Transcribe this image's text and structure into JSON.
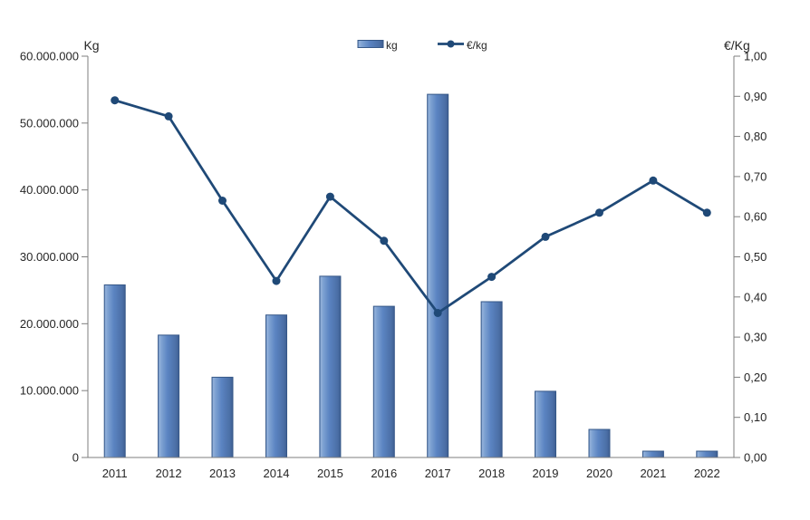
{
  "chart_data": {
    "type": "bar+line",
    "categories": [
      "2011",
      "2012",
      "2013",
      "2014",
      "2015",
      "2016",
      "2017",
      "2018",
      "2019",
      "2020",
      "2021",
      "2022"
    ],
    "series": [
      {
        "name": "kg",
        "type": "bar",
        "axis": "left",
        "values": [
          25800000,
          18300000,
          12000000,
          21300000,
          27100000,
          22600000,
          54300000,
          23300000,
          9900000,
          4200000,
          950000,
          950000
        ]
      },
      {
        "name": "€/kg",
        "type": "line",
        "axis": "right",
        "values": [
          0.89,
          0.85,
          0.64,
          0.44,
          0.65,
          0.54,
          0.36,
          0.45,
          0.55,
          0.61,
          0.69,
          0.61
        ]
      }
    ],
    "left_axis": {
      "title": "Kg",
      "min": 0,
      "max": 60000000,
      "tick_step": 10000000,
      "tick_labels": [
        "0",
        "10.000.000",
        "20.000.000",
        "30.000.000",
        "40.000.000",
        "50.000.000",
        "60.000.000"
      ]
    },
    "right_axis": {
      "title": "€/Kg",
      "min": 0,
      "max": 1.0,
      "tick_step": 0.1,
      "tick_labels": [
        "0,00",
        "0,10",
        "0,20",
        "0,30",
        "0,40",
        "0,50",
        "0,60",
        "0,70",
        "0,80",
        "0,90",
        "1,00"
      ]
    },
    "grid": false,
    "legend_position": "top-center",
    "colors": {
      "bar_gradient": [
        "#6b92c9",
        "#93b1da",
        "#7ea2d2",
        "#5b84c2",
        "#4b6fa6",
        "#3f5f92"
      ],
      "bar_stroke": "#365888",
      "line": "#1f4977",
      "axis": "#7f7f7f",
      "text": "#262626",
      "background": "#ffffff"
    }
  }
}
